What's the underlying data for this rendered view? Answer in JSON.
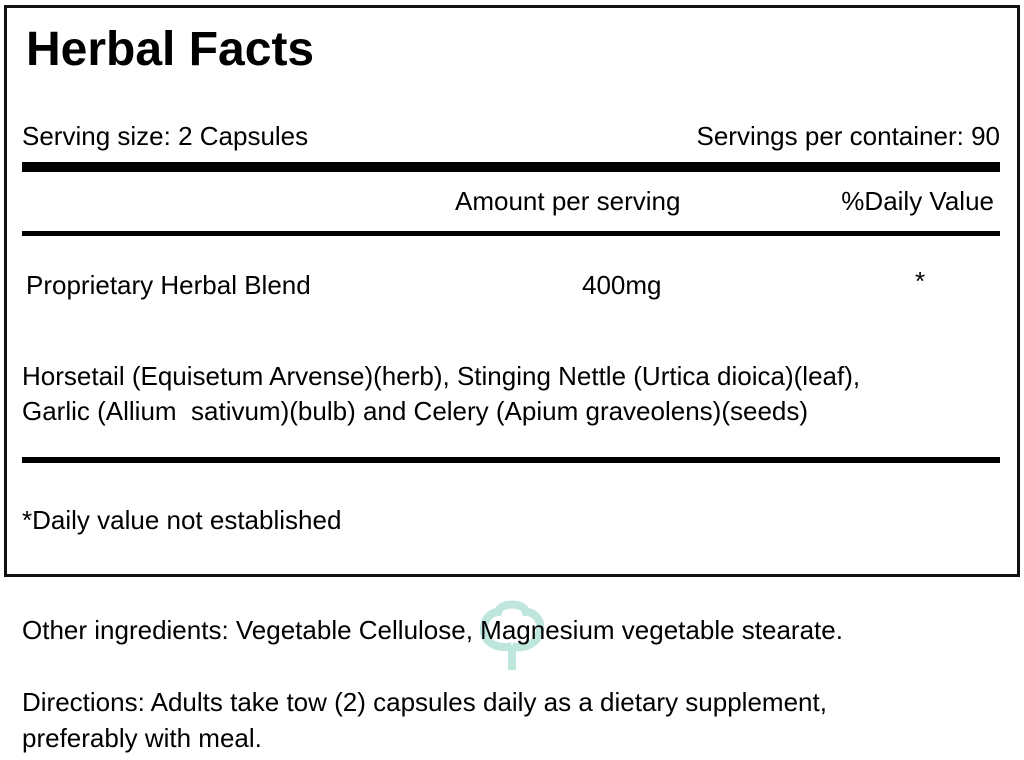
{
  "panel": {
    "title": "Herbal Facts",
    "serving_size": "Serving size: 2 Capsules",
    "servings_per_container": "Servings per container: 90",
    "header_amount": "Amount per serving",
    "header_dv": "%Daily Value",
    "blend": {
      "name": "Proprietary Herbal Blend",
      "amount": "400mg",
      "dv": "*"
    },
    "ingredients_line1": "Horsetail (Equisetum Arvense)(herb), Stinging Nettle (Urtica dioica)(leaf),",
    "ingredients_line2": "Garlic (Allium  sativum)(bulb) and Celery (Apium graveolens)(seeds)",
    "footnote": "*Daily value not established"
  },
  "other_ingredients": "Other ingredients: Vegetable Cellulose, Magnesium vegetable stearate.",
  "directions_line1": "Directions: Adults take tow (2) capsules daily as a dietary supplement,",
  "directions_line2": "preferably with meal.",
  "watermark": {
    "icon": "tree-logo-icon",
    "color": "#bfe6dc"
  }
}
